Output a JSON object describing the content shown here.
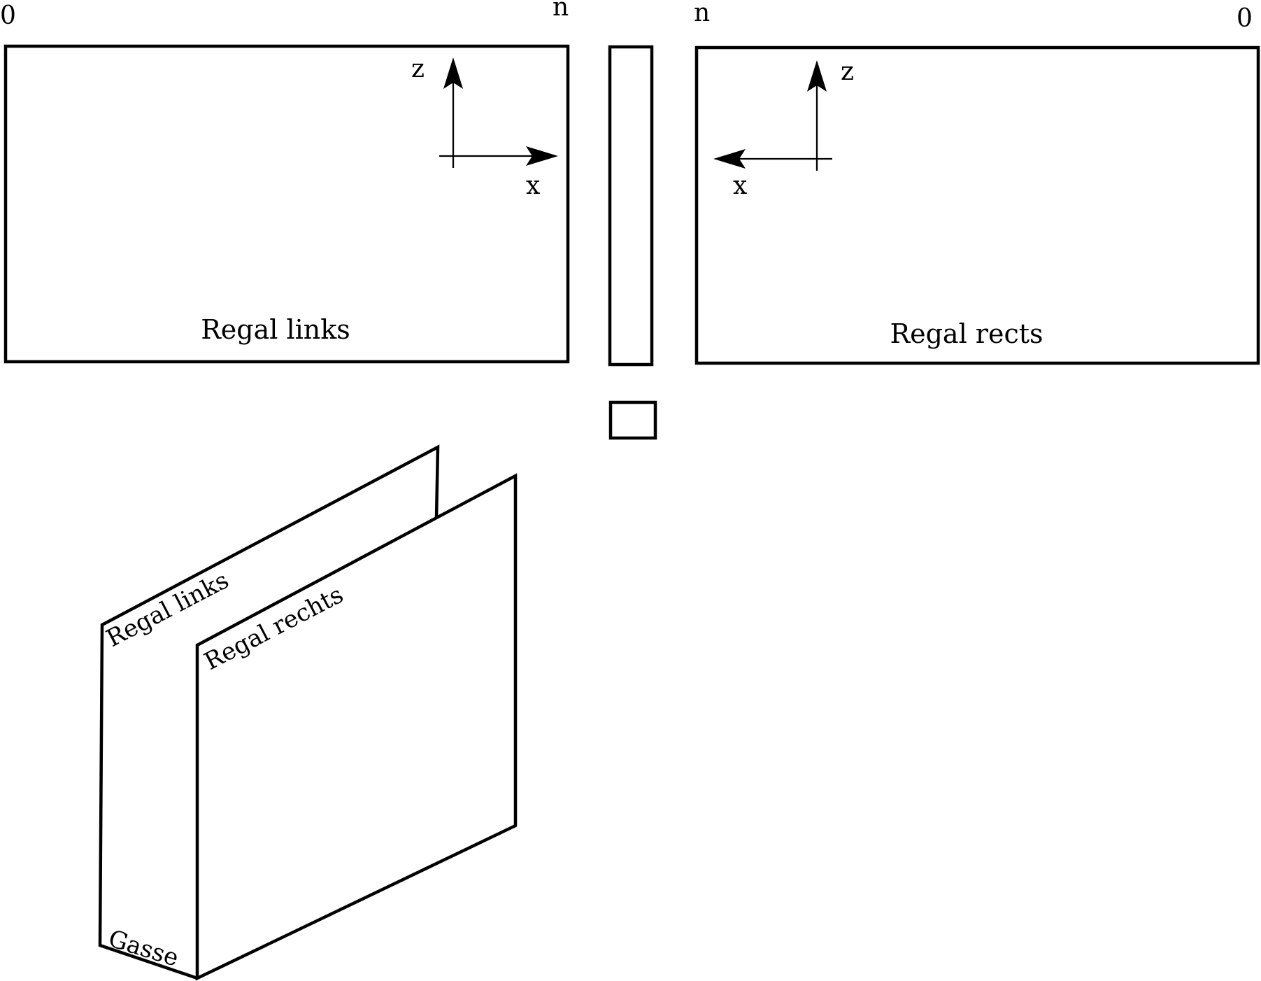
{
  "diagram": {
    "top_left": {
      "corner_start": "0",
      "corner_end": "n",
      "axis_z": "z",
      "axis_x": "x",
      "title": "Regal links"
    },
    "top_right": {
      "corner_start": "n",
      "corner_end": "0",
      "axis_z": "z",
      "axis_x": "x",
      "title": "Regal rects"
    },
    "perspective": {
      "back_panel": "Regal links",
      "front_panel": "Regal rechts",
      "floor": "Gasse"
    }
  }
}
